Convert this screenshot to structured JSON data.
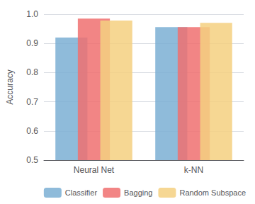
{
  "chart_data": {
    "type": "bar",
    "categories": [
      "Neural Net",
      "k-NN"
    ],
    "series": [
      {
        "name": "Classifier",
        "color": "#7BAFD4",
        "values": [
          0.92,
          0.956
        ]
      },
      {
        "name": "Bagging",
        "color": "#F07070",
        "values": [
          0.985,
          0.956
        ]
      },
      {
        "name": "Random Subspace",
        "color": "#F5D080",
        "values": [
          0.978,
          0.97
        ]
      }
    ],
    "ylabel": "Accuracy",
    "ylim": [
      0.5,
      1.0
    ],
    "yticks": [
      0.5,
      0.6,
      0.7,
      0.8,
      0.9,
      {
        "value": 1.0,
        "label": "1.0"
      }
    ],
    "grid": true,
    "legend": "lower right"
  }
}
